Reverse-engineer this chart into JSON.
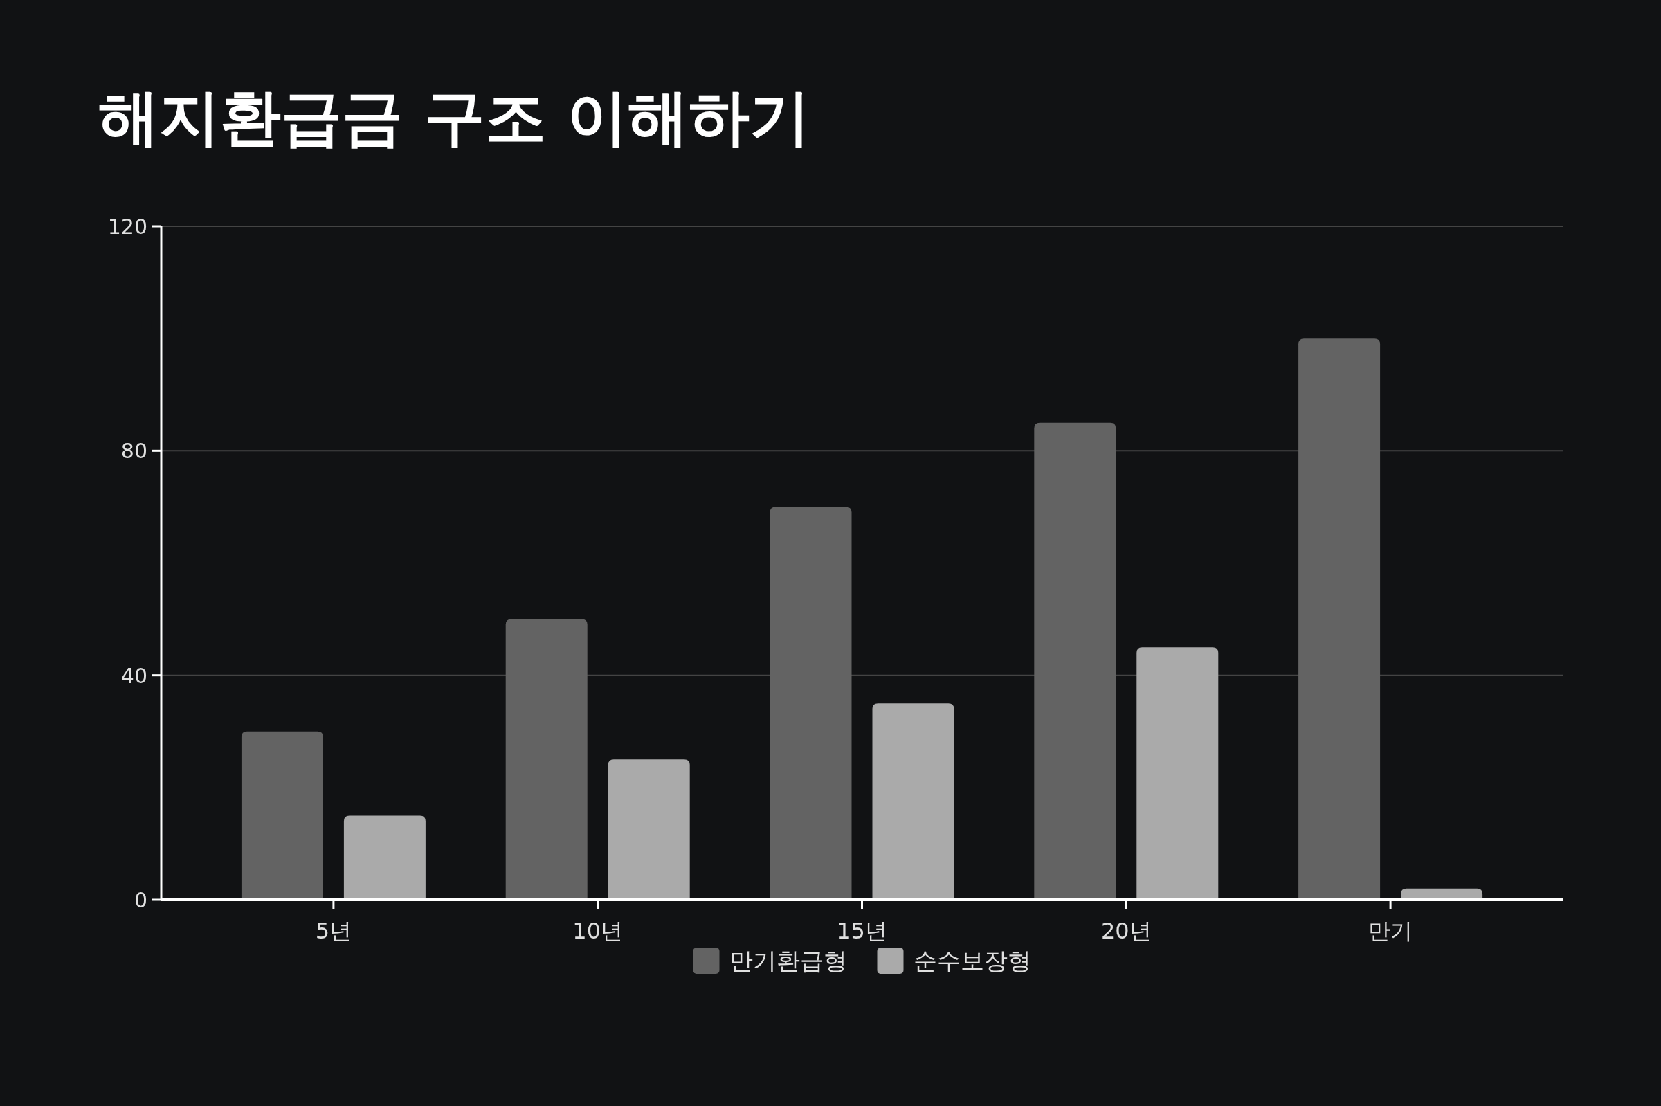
{
  "chart_data": {
    "type": "bar",
    "title": "해지환급금 구조 이해하기",
    "categories": [
      "5년",
      "10년",
      "15년",
      "20년",
      "만기"
    ],
    "series": [
      {
        "name": "만기환급형",
        "color": "#636363",
        "values": [
          30,
          50,
          70,
          85,
          100
        ]
      },
      {
        "name": "순수보장형",
        "color": "#aaaaaa",
        "values": [
          15,
          25,
          35,
          45,
          2
        ]
      }
    ],
    "ylim": [
      0,
      120
    ],
    "yticks": [
      0,
      40,
      80,
      120
    ],
    "grid": "y",
    "legend": "bottom"
  }
}
